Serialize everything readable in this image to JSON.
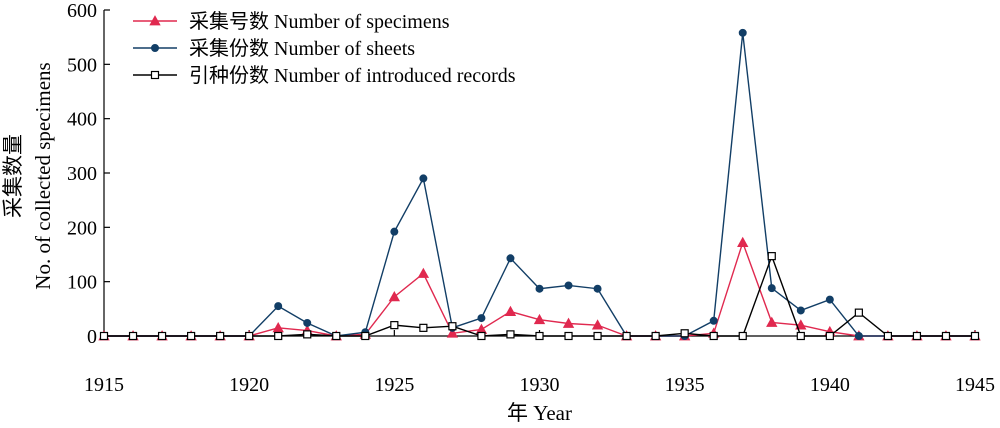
{
  "chart_data": {
    "type": "line",
    "title": "",
    "xlabel": "年 Year",
    "ylabel_cn": "采集数量",
    "ylabel_en": "No. of collected specimens",
    "xlim": [
      1915,
      1945
    ],
    "ylim": [
      0,
      600
    ],
    "x_ticks": [
      1915,
      1920,
      1925,
      1930,
      1935,
      1940,
      1945
    ],
    "y_ticks": [
      0,
      100,
      200,
      300,
      400,
      500,
      600
    ],
    "grid": false,
    "legend_position": "top-left",
    "x": [
      1915,
      1916,
      1917,
      1918,
      1919,
      1920,
      1921,
      1922,
      1923,
      1924,
      1925,
      1926,
      1927,
      1928,
      1929,
      1930,
      1931,
      1932,
      1933,
      1934,
      1935,
      1936,
      1937,
      1938,
      1939,
      1940,
      1941,
      1942,
      1943,
      1944,
      1945
    ],
    "series": [
      {
        "name": "采集号数 Number of specimens",
        "color": "#e0294f",
        "marker": "triangle",
        "values": [
          0,
          0,
          0,
          0,
          0,
          0,
          15,
          10,
          0,
          3,
          72,
          115,
          5,
          12,
          45,
          30,
          23,
          20,
          0,
          0,
          0,
          5,
          172,
          25,
          20,
          8,
          0,
          0,
          0,
          0,
          0
        ]
      },
      {
        "name": "采集份数 Number of sheets",
        "color": "#123e66",
        "marker": "circle",
        "values": [
          0,
          0,
          0,
          0,
          0,
          0,
          55,
          24,
          0,
          7,
          192,
          290,
          15,
          33,
          143,
          87,
          93,
          87,
          0,
          0,
          0,
          28,
          558,
          88,
          47,
          67,
          0,
          0,
          0,
          0,
          0
        ]
      },
      {
        "name": "引种份数 Number of introduced records",
        "color": "#000000",
        "marker": "square",
        "values": [
          0,
          0,
          0,
          0,
          0,
          0,
          0,
          3,
          0,
          0,
          20,
          15,
          18,
          0,
          3,
          0,
          0,
          0,
          0,
          0,
          5,
          0,
          0,
          147,
          0,
          0,
          43,
          0,
          0,
          0,
          0
        ]
      }
    ]
  }
}
